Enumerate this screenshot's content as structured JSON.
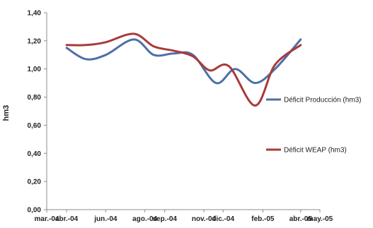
{
  "chart_data": {
    "type": "line",
    "ylabel": "hm3",
    "ylim": [
      0,
      1.4
    ],
    "yticks": [
      "0,00",
      "0,20",
      "0,40",
      "0,60",
      "0,80",
      "1,00",
      "1,20",
      "1,40"
    ],
    "x_tick_labels": [
      "mar.-04",
      "abr.-04",
      "jun.-04",
      "ago.-04",
      "sep.-04",
      "nov.-04",
      "dic.-04",
      "feb.-05",
      "abr.-05",
      "may.-05"
    ],
    "x_tick_dates": [
      "2004-03-01",
      "2004-04-01",
      "2004-06-01",
      "2004-08-01",
      "2004-09-01",
      "2004-11-01",
      "2004-12-01",
      "2005-02-01",
      "2005-04-01",
      "2005-05-01"
    ],
    "legend_placement": "right",
    "grid": false,
    "series": [
      {
        "name": "Déficit Producción (hm3)",
        "color": "#4F6FA8",
        "points": [
          {
            "x": "2004-04-01",
            "y": 1.15
          },
          {
            "x": "2004-05-01",
            "y": 1.07
          },
          {
            "x": "2004-06-01",
            "y": 1.1
          },
          {
            "x": "2004-07-15",
            "y": 1.21
          },
          {
            "x": "2004-08-15",
            "y": 1.1
          },
          {
            "x": "2004-09-15",
            "y": 1.11
          },
          {
            "x": "2004-10-15",
            "y": 1.1
          },
          {
            "x": "2004-11-20",
            "y": 0.9
          },
          {
            "x": "2004-12-20",
            "y": 1.0
          },
          {
            "x": "2005-01-20",
            "y": 0.9
          },
          {
            "x": "2005-02-20",
            "y": 1.0
          },
          {
            "x": "2005-04-01",
            "y": 1.21
          }
        ]
      },
      {
        "name": "Déficit WEAP (hm3)",
        "color": "#A83A3A",
        "points": [
          {
            "x": "2004-04-01",
            "y": 1.17
          },
          {
            "x": "2004-05-01",
            "y": 1.17
          },
          {
            "x": "2004-06-01",
            "y": 1.19
          },
          {
            "x": "2004-07-15",
            "y": 1.25
          },
          {
            "x": "2004-08-15",
            "y": 1.16
          },
          {
            "x": "2004-09-15",
            "y": 1.13
          },
          {
            "x": "2004-10-15",
            "y": 1.09
          },
          {
            "x": "2004-11-10",
            "y": 0.99
          },
          {
            "x": "2004-12-10",
            "y": 1.02
          },
          {
            "x": "2005-01-20",
            "y": 0.74
          },
          {
            "x": "2005-02-20",
            "y": 1.03
          },
          {
            "x": "2005-04-01",
            "y": 1.17
          }
        ]
      }
    ]
  }
}
